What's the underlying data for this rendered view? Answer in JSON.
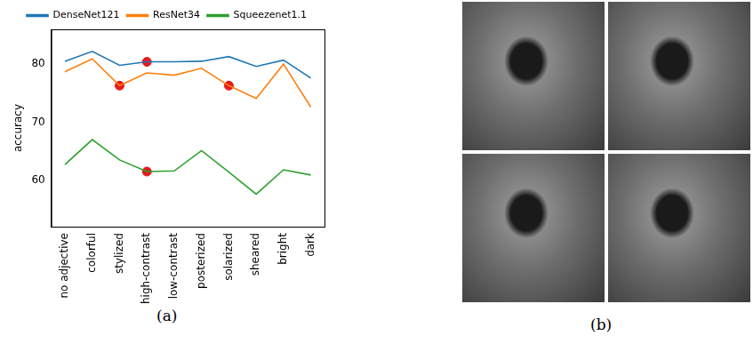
{
  "chart_data": {
    "type": "line",
    "categories": [
      "no adjective",
      "colorful",
      "stylized",
      "high-contrast",
      "low-contrast",
      "posterized",
      "solarized",
      "sheared",
      "bright",
      "dark"
    ],
    "y_label": "accuracy",
    "ylim": [
      52,
      86
    ],
    "yticks": [
      60,
      70,
      80
    ],
    "grid": false,
    "legend": "top",
    "series": [
      {
        "name": "DenseNet121",
        "color": "#1f77b4",
        "values": [
          80.5,
          82.2,
          79.8,
          80.4,
          80.4,
          80.5,
          81.3,
          79.6,
          80.7,
          77.6
        ]
      },
      {
        "name": "ResNet34",
        "color": "#ff7f0e",
        "values": [
          78.7,
          80.9,
          76.3,
          78.5,
          78.1,
          79.3,
          76.3,
          74.1,
          80.0,
          72.6
        ]
      },
      {
        "name": "Squeezenet1.1",
        "color": "#2ca02c",
        "values": [
          62.7,
          67.0,
          63.5,
          61.5,
          61.6,
          65.1,
          61.4,
          57.6,
          61.8,
          60.9
        ]
      }
    ],
    "highlights": {
      "color": "#e41a1c",
      "points": [
        {
          "series": "ResNet34",
          "category": "stylized"
        },
        {
          "series": "DenseNet121",
          "category": "high-contrast"
        },
        {
          "series": "Squeezenet1.1",
          "category": "high-contrast"
        },
        {
          "series": "ResNet34",
          "category": "solarized"
        }
      ]
    }
  },
  "panel_labels": [
    "(a)",
    "(b)"
  ]
}
